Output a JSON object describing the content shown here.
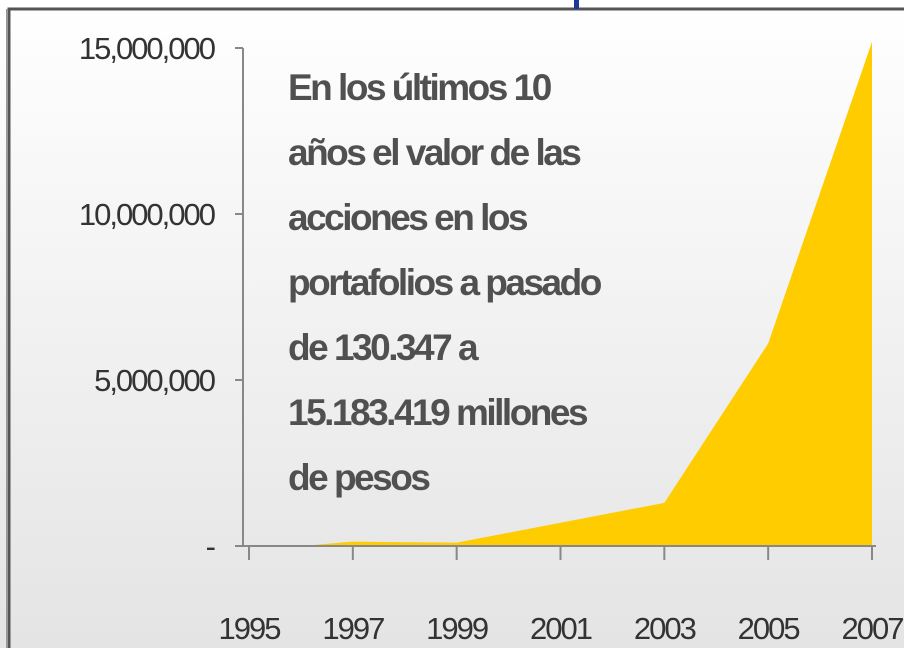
{
  "chart_data": {
    "type": "area",
    "annotation": [
      "En los últimos 10",
      "años el valor de las",
      "acciones en los",
      "portafolios a pasado",
      "de 130.347 a",
      "15.183.419 millones",
      "de pesos"
    ],
    "x": [
      1996,
      1997,
      1999,
      2001,
      2003,
      2005,
      2007
    ],
    "values": [
      0,
      130347,
      100000,
      700000,
      1300000,
      6100000,
      15183419
    ],
    "color": "#ffcc00",
    "xlim": [
      1995,
      2007
    ],
    "xticks": [
      1995,
      1997,
      1999,
      2001,
      2003,
      2005,
      2007
    ],
    "ylim": [
      0,
      15000000
    ],
    "yticks": [
      {
        "value": 0,
        "label": "-"
      },
      {
        "value": 5000000,
        "label": "5,000,000"
      },
      {
        "value": 10000000,
        "label": "10,000,000"
      },
      {
        "value": 15000000,
        "label": "15,000,000"
      }
    ]
  }
}
